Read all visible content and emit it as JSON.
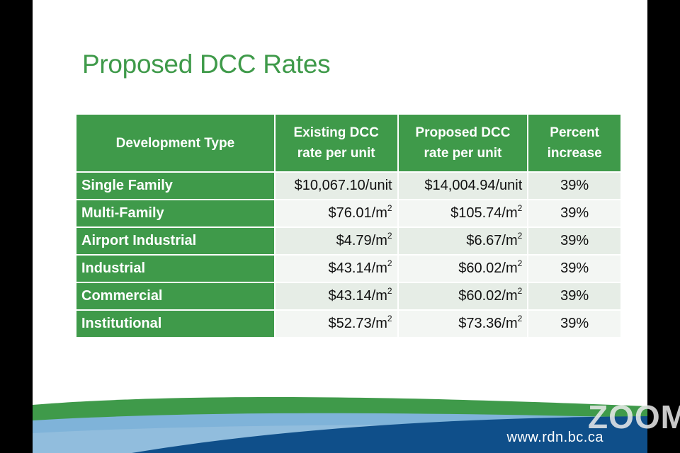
{
  "slide": {
    "title": "Proposed DCC Rates",
    "website": "www.rdn.bc.ca"
  },
  "table": {
    "headers": {
      "development_type": "Development Type",
      "existing_line1": "Existing DCC",
      "existing_line2": "rate per unit",
      "proposed_line1": "Proposed DCC",
      "proposed_line2": "rate per unit",
      "percent_line1": "Percent",
      "percent_line2": "increase"
    },
    "rows": [
      {
        "type": "Single Family",
        "existing": "$10,067.10/unit",
        "existing_sup": "",
        "proposed": "$14,004.94/unit",
        "proposed_sup": "",
        "percent": "39%"
      },
      {
        "type": "Multi-Family",
        "existing": "$76.01/m",
        "existing_sup": "2",
        "proposed": "$105.74/m",
        "proposed_sup": "2",
        "percent": "39%"
      },
      {
        "type": "Airport Industrial",
        "existing": "$4.79/m",
        "existing_sup": "2",
        "proposed": "$6.67/m",
        "proposed_sup": "2",
        "percent": "39%"
      },
      {
        "type": "Industrial",
        "existing": "$43.14/m",
        "existing_sup": "2",
        "proposed": "$60.02/m",
        "proposed_sup": "2",
        "percent": "39%"
      },
      {
        "type": "Commercial",
        "existing": "$43.14/m",
        "existing_sup": "2",
        "proposed": "$60.02/m",
        "proposed_sup": "2",
        "percent": "39%"
      },
      {
        "type": "Institutional",
        "existing": "$52.73/m",
        "existing_sup": "2",
        "proposed": "$73.36/m",
        "proposed_sup": "2",
        "percent": "39%"
      }
    ]
  },
  "overlay": {
    "watermark": "ZOOM"
  },
  "colors": {
    "accent_green": "#3f9a4a",
    "footer_blue": "#0f4f8a",
    "footer_light_blue": "#7fb3d9"
  }
}
